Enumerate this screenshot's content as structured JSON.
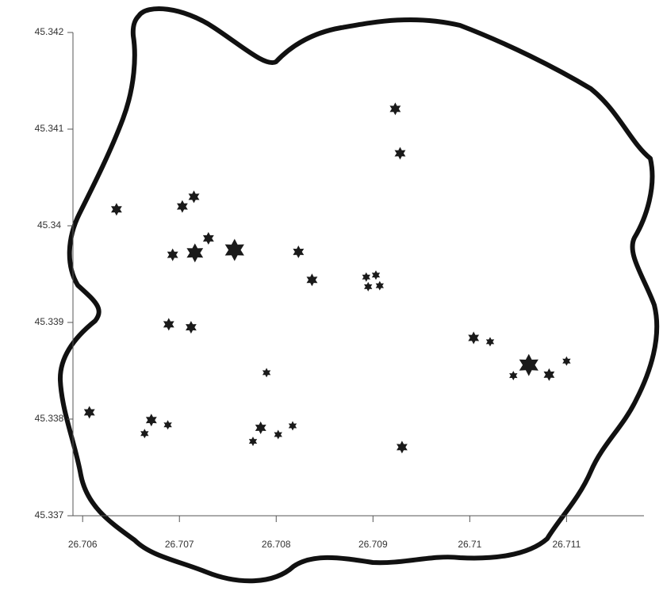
{
  "chart_data": {
    "type": "scatter",
    "marker": "star",
    "color": "#1a1a1a",
    "xlim": [
      26.7059,
      26.7118
    ],
    "ylim": [
      45.337,
      45.342
    ],
    "xticks": [
      26.706,
      26.707,
      26.708,
      26.709,
      26.71,
      26.711
    ],
    "yticks": [
      45.337,
      45.338,
      45.339,
      45.34,
      45.341,
      45.342
    ],
    "x": [
      26.70923,
      26.70928,
      26.70635,
      26.70703,
      26.70715,
      26.70693,
      26.70716,
      26.7073,
      26.70757,
      26.70823,
      26.70837,
      26.70893,
      26.70903,
      26.70895,
      26.70907,
      26.70689,
      26.70712,
      26.71004,
      26.71021,
      26.7079,
      26.71061,
      26.71045,
      26.71082,
      26.711,
      26.70607,
      26.70671,
      26.70688,
      26.70664,
      26.70784,
      26.70776,
      26.70802,
      26.70817,
      26.7093
    ],
    "values": [
      45.34121,
      45.34075,
      45.34017,
      45.3402,
      45.3403,
      45.3397,
      45.33972,
      45.33987,
      45.33975,
      45.33973,
      45.33944,
      45.33947,
      45.33949,
      45.33937,
      45.33938,
      45.33898,
      45.33895,
      45.33884,
      45.3388,
      45.33848,
      45.33856,
      45.33845,
      45.33846,
      45.3386,
      45.33807,
      45.33799,
      45.33794,
      45.33785,
      45.33791,
      45.33777,
      45.33784,
      45.33793,
      45.33771
    ],
    "sizes": [
      8,
      8,
      8,
      8,
      8,
      8,
      12,
      8,
      14,
      8,
      8,
      6,
      6,
      6,
      6,
      8,
      8,
      8,
      6,
      6,
      14,
      6,
      8,
      6,
      8,
      8,
      6,
      6,
      8,
      6,
      6,
      6,
      8
    ]
  }
}
